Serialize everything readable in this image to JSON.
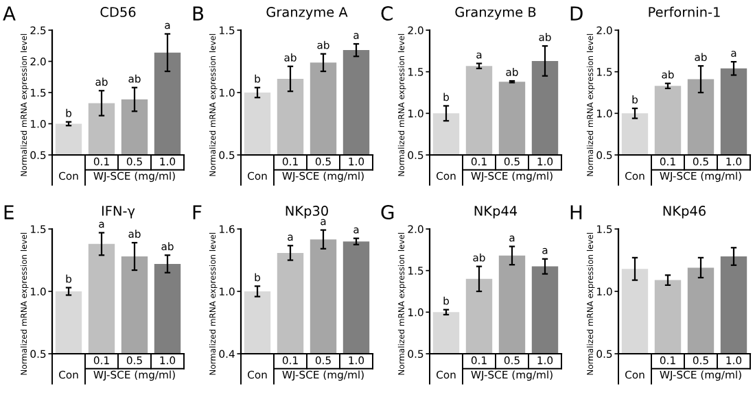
{
  "chart_data": [
    {
      "type": "bar",
      "title": "CD56",
      "ylabel": "Normalized mRNA expression level",
      "xlabel": "WJ-SCE (mg/ml)",
      "categories": [
        "Con",
        "0.1",
        "0.5",
        "1.0"
      ],
      "values": [
        1.0,
        1.33,
        1.39,
        2.14
      ],
      "errors": [
        0.03,
        0.2,
        0.19,
        0.3
      ],
      "colors": [
        "#d9d9d9",
        "#bfbfbf",
        "#a6a6a6",
        "#7f7f7f"
      ],
      "ylim": [
        0.5,
        2.5
      ],
      "yticks": [
        {
          "value": 0.5,
          "label": "0.5"
        },
        {
          "value": 1.0,
          "label": "1.0"
        },
        {
          "value": 1.5,
          "label": "1.5"
        },
        {
          "value": 2.0,
          "label": "2.0"
        },
        {
          "value": 2.5,
          "label": "2.5"
        }
      ],
      "annotations": [
        "A",
        {
          "text": "b",
          "x": "Con",
          "y": 1.03
        },
        {
          "text": "ab",
          "x": "0.1",
          "y": 1.53
        },
        {
          "text": "ab",
          "x": "0.5",
          "y": 1.58
        },
        {
          "text": "a",
          "x": "1.0",
          "y": 2.44
        }
      ]
    },
    {
      "type": "bar",
      "title": "Granzyme A",
      "ylabel": "Normalized mRNA expression level",
      "xlabel": "WJ-SCE (mg/ml)",
      "categories": [
        "Con",
        "0.1",
        "0.5",
        "1.0"
      ],
      "values": [
        1.0,
        1.11,
        1.24,
        1.34
      ],
      "errors": [
        0.04,
        0.1,
        0.07,
        0.05
      ],
      "colors": [
        "#d9d9d9",
        "#bfbfbf",
        "#a6a6a6",
        "#7f7f7f"
      ],
      "ylim": [
        0.5,
        1.5
      ],
      "yticks": [
        {
          "value": 0.5,
          "label": "0.5"
        },
        {
          "value": 1.0,
          "label": "1.0"
        },
        {
          "value": 1.5,
          "label": "1.5"
        }
      ],
      "annotations": [
        "B",
        {
          "text": "b",
          "x": "Con",
          "y": 1.04
        },
        {
          "text": "ab",
          "x": "0.1",
          "y": 1.21
        },
        {
          "text": "ab",
          "x": "0.5",
          "y": 1.31
        },
        {
          "text": "a",
          "x": "1.0",
          "y": 1.39
        }
      ]
    },
    {
      "type": "bar",
      "title": "Granzyme B",
      "ylabel": "Normalized mRNA expression level",
      "xlabel": "WJ-SCE (mg/ml)",
      "categories": [
        "Con",
        "0.1",
        "0.5",
        "1.0"
      ],
      "values": [
        1.0,
        1.57,
        1.38,
        1.63
      ],
      "errors": [
        0.09,
        0.03,
        0.01,
        0.18
      ],
      "colors": [
        "#d9d9d9",
        "#bfbfbf",
        "#a6a6a6",
        "#7f7f7f"
      ],
      "ylim": [
        0.5,
        2.0
      ],
      "yticks": [
        {
          "value": 0.5,
          "label": "0.5"
        },
        {
          "value": 1.0,
          "label": "1.0"
        },
        {
          "value": 1.5,
          "label": "1.5"
        },
        {
          "value": 2.0,
          "label": "2.0"
        }
      ],
      "annotations": [
        "C",
        {
          "text": "b",
          "x": "Con",
          "y": 1.09
        },
        {
          "text": "a",
          "x": "0.1",
          "y": 1.6
        },
        {
          "text": "ab",
          "x": "0.5",
          "y": 1.39
        },
        {
          "text": "ab",
          "x": "1.0",
          "y": 1.81
        }
      ]
    },
    {
      "type": "bar",
      "title": "Perfornin-1",
      "ylabel": "Normalized mRNA expression level",
      "xlabel": "WJ-SCE (mg/ml)",
      "categories": [
        "Con",
        "0.1",
        "0.5",
        "1.0"
      ],
      "values": [
        1.0,
        1.33,
        1.41,
        1.54
      ],
      "errors": [
        0.06,
        0.03,
        0.16,
        0.08
      ],
      "colors": [
        "#d9d9d9",
        "#bfbfbf",
        "#a6a6a6",
        "#7f7f7f"
      ],
      "ylim": [
        0.5,
        2.0
      ],
      "yticks": [
        {
          "value": 0.5,
          "label": "0.5"
        },
        {
          "value": 1.0,
          "label": "1.0"
        },
        {
          "value": 1.5,
          "label": "1.5"
        },
        {
          "value": 2.0,
          "label": "2.0"
        }
      ],
      "annotations": [
        "D",
        {
          "text": "b",
          "x": "Con",
          "y": 1.06
        },
        {
          "text": "ab",
          "x": "0.1",
          "y": 1.36
        },
        {
          "text": "ab",
          "x": "0.5",
          "y": 1.57
        },
        {
          "text": "a",
          "x": "1.0",
          "y": 1.62
        }
      ]
    },
    {
      "type": "bar",
      "title": "IFN-γ",
      "ylabel": "Normalized mRNA expression level",
      "xlabel": "WJ-SCE (mg/ml)",
      "categories": [
        "Con",
        "0.1",
        "0.5",
        "1.0"
      ],
      "values": [
        1.0,
        1.38,
        1.28,
        1.22
      ],
      "errors": [
        0.03,
        0.09,
        0.11,
        0.07
      ],
      "colors": [
        "#d9d9d9",
        "#bfbfbf",
        "#a6a6a6",
        "#7f7f7f"
      ],
      "ylim": [
        0.5,
        1.5
      ],
      "yticks": [
        {
          "value": 0.5,
          "label": "0.5"
        },
        {
          "value": 1.0,
          "label": "1.0"
        },
        {
          "value": 1.5,
          "label": "1.5"
        }
      ],
      "annotations": [
        "E",
        {
          "text": "b",
          "x": "Con",
          "y": 1.03
        },
        {
          "text": "a",
          "x": "0.1",
          "y": 1.47
        },
        {
          "text": "ab",
          "x": "0.5",
          "y": 1.39
        },
        {
          "text": "ab",
          "x": "1.0",
          "y": 1.29
        }
      ]
    },
    {
      "type": "bar",
      "title": "NKp30",
      "ylabel": "Normalized mRNA expression level",
      "xlabel": "WJ-SCE (mg/ml)",
      "categories": [
        "Con",
        "0.1",
        "0.5",
        "1.0"
      ],
      "values": [
        1.0,
        1.37,
        1.5,
        1.48
      ],
      "errors": [
        0.05,
        0.07,
        0.09,
        0.03
      ],
      "colors": [
        "#d9d9d9",
        "#bfbfbf",
        "#a6a6a6",
        "#7f7f7f"
      ],
      "ylim": [
        0.4,
        1.6
      ],
      "yticks": [
        {
          "value": 0.4,
          "label": "0.4"
        },
        {
          "value": 1.0,
          "label": "1.0"
        },
        {
          "value": 1.6,
          "label": "1.6"
        }
      ],
      "annotations": [
        "F",
        {
          "text": "b",
          "x": "Con",
          "y": 1.05
        },
        {
          "text": "a",
          "x": "0.1",
          "y": 1.44
        },
        {
          "text": "a",
          "x": "0.5",
          "y": 1.59
        },
        {
          "text": "a",
          "x": "1.0",
          "y": 1.51
        }
      ]
    },
    {
      "type": "bar",
      "title": "NKp44",
      "ylabel": "Normalized mRNA expression level",
      "xlabel": "WJ-SCE (mg/ml)",
      "categories": [
        "Con",
        "0.1",
        "0.5",
        "1.0"
      ],
      "values": [
        1.0,
        1.4,
        1.68,
        1.55
      ],
      "errors": [
        0.03,
        0.15,
        0.11,
        0.09
      ],
      "colors": [
        "#d9d9d9",
        "#bfbfbf",
        "#a6a6a6",
        "#7f7f7f"
      ],
      "ylim": [
        0.5,
        2.0
      ],
      "yticks": [
        {
          "value": 0.5,
          "label": "0.5"
        },
        {
          "value": 1.0,
          "label": "1.0"
        },
        {
          "value": 1.5,
          "label": "1.5"
        },
        {
          "value": 2.0,
          "label": "2.0"
        }
      ],
      "annotations": [
        "G",
        {
          "text": "b",
          "x": "Con",
          "y": 1.03
        },
        {
          "text": "ab",
          "x": "0.1",
          "y": 1.55
        },
        {
          "text": "a",
          "x": "0.5",
          "y": 1.79
        },
        {
          "text": "a",
          "x": "1.0",
          "y": 1.64
        }
      ]
    },
    {
      "type": "bar",
      "title": "NKp46",
      "ylabel": "Normalized mRNA expression level",
      "xlabel": "WJ-SCE (mg/ml)",
      "categories": [
        "Con",
        "0.1",
        "0.5",
        "1.0"
      ],
      "values": [
        1.18,
        1.09,
        1.19,
        1.28
      ],
      "errors": [
        0.09,
        0.04,
        0.08,
        0.07
      ],
      "colors": [
        "#d9d9d9",
        "#bfbfbf",
        "#a6a6a6",
        "#7f7f7f"
      ],
      "ylim": [
        0.5,
        1.5
      ],
      "yticks": [
        {
          "value": 0.5,
          "label": "0.5"
        },
        {
          "value": 1.0,
          "label": "1.0"
        },
        {
          "value": 1.5,
          "label": "1.5"
        }
      ],
      "annotations": [
        "H"
      ]
    }
  ]
}
